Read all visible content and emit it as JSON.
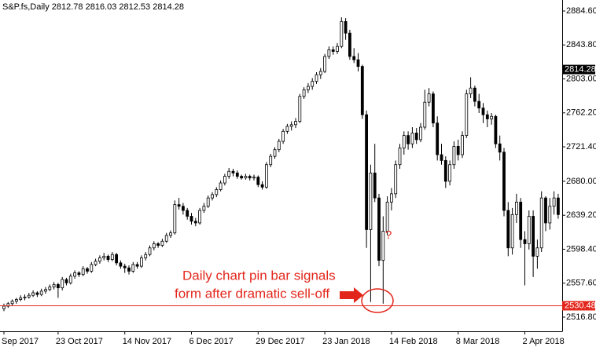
{
  "chart_data": {
    "type": "candlestick",
    "title": "S&P.fs,Daily  2812.78 2816.03 2812.53 2814.28",
    "categories": [
      "Sep 2017",
      null,
      null,
      null,
      null,
      null,
      null,
      null,
      null,
      null,
      null,
      null,
      null,
      "23 Oct 2017",
      null,
      null,
      null,
      null,
      null,
      null,
      null,
      null,
      null,
      null,
      null,
      null,
      null,
      null,
      null,
      "14 Nov 2017",
      null,
      null,
      null,
      null,
      null,
      null,
      null,
      null,
      null,
      null,
      null,
      null,
      null,
      null,
      null,
      "6 Dec 2017",
      null,
      null,
      null,
      null,
      null,
      null,
      null,
      null,
      null,
      null,
      null,
      null,
      null,
      null,
      null,
      "29 Dec 2017",
      null,
      null,
      null,
      null,
      null,
      null,
      null,
      null,
      null,
      null,
      null,
      null,
      null,
      null,
      null,
      "23 Jan 2018",
      null,
      null,
      null,
      null,
      null,
      null,
      null,
      null,
      null,
      null,
      null,
      null,
      null,
      null,
      null,
      "14 Feb 2018",
      null,
      null,
      null,
      null,
      null,
      null,
      null,
      null,
      null,
      null,
      null,
      null,
      null,
      null,
      null,
      "8 Mar 2018",
      null,
      null,
      null,
      null,
      null,
      null,
      null,
      null,
      null,
      null,
      null,
      null,
      null,
      null,
      null,
      "2 Apr 2018",
      null,
      null,
      null,
      null,
      null,
      null,
      null,
      null
    ],
    "open": [
      2527,
      2530,
      2533,
      2536,
      2538,
      2540,
      2541,
      2543,
      2546,
      2544,
      2548,
      2550,
      2553,
      2556,
      2552,
      2562,
      2558,
      2566,
      2570,
      2568,
      2575,
      2572,
      2580,
      2584,
      2588,
      2590,
      2586,
      2592,
      2582,
      2578,
      2576,
      2572,
      2580,
      2578,
      2588,
      2592,
      2600,
      2605,
      2603,
      2608,
      2615,
      2618,
      2652,
      2650,
      2645,
      2638,
      2632,
      2630,
      2645,
      2650,
      2660,
      2664,
      2670,
      2678,
      2686,
      2692,
      2690,
      2686,
      2684,
      2686,
      2684,
      2685,
      2676,
      2673,
      2700,
      2710,
      2718,
      2728,
      2740,
      2746,
      2748,
      2752,
      2782,
      2790,
      2794,
      2800,
      2808,
      2812,
      2830,
      2838,
      2836,
      2842,
      2872,
      2858,
      2830,
      2826,
      2818,
      2760,
      2622,
      2690,
      2660,
      2585,
      2620,
      2655,
      2665,
      2700,
      2720,
      2735,
      2725,
      2738,
      2730,
      2745,
      2775,
      2785,
      2750,
      2712,
      2705,
      2680,
      2700,
      2722,
      2712,
      2735,
      2785,
      2792,
      2776,
      2768,
      2760,
      2755,
      2758,
      2725,
      2715,
      2645,
      2600,
      2640,
      2655,
      2610,
      2605,
      2638,
      2590,
      2600,
      2660,
      2630,
      2650,
      2660
    ],
    "high": [
      2533,
      2535,
      2538,
      2540,
      2543,
      2544,
      2546,
      2549,
      2548,
      2551,
      2553,
      2556,
      2559,
      2558,
      2565,
      2564,
      2569,
      2573,
      2572,
      2578,
      2577,
      2583,
      2587,
      2591,
      2594,
      2592,
      2595,
      2594,
      2585,
      2581,
      2579,
      2583,
      2583,
      2591,
      2595,
      2603,
      2608,
      2607,
      2611,
      2618,
      2621,
      2657,
      2660,
      2654,
      2648,
      2642,
      2636,
      2648,
      2654,
      2663,
      2667,
      2673,
      2681,
      2689,
      2696,
      2695,
      2693,
      2688,
      2689,
      2688,
      2688,
      2687,
      2680,
      2703,
      2713,
      2721,
      2731,
      2743,
      2749,
      2752,
      2756,
      2785,
      2793,
      2798,
      2804,
      2811,
      2816,
      2833,
      2842,
      2842,
      2846,
      2877,
      2876,
      2862,
      2840,
      2834,
      2820,
      2765,
      2700,
      2725,
      2665,
      2638,
      2662,
      2672,
      2705,
      2725,
      2740,
      2740,
      2745,
      2744,
      2750,
      2790,
      2792,
      2788,
      2758,
      2725,
      2710,
      2705,
      2728,
      2730,
      2740,
      2790,
      2805,
      2795,
      2785,
      2774,
      2765,
      2762,
      2760,
      2735,
      2720,
      2655,
      2648,
      2665,
      2660,
      2620,
      2645,
      2645,
      2610,
      2668,
      2662,
      2660,
      2668,
      2665
    ],
    "low": [
      2524,
      2528,
      2531,
      2533,
      2536,
      2537,
      2539,
      2541,
      2541,
      2542,
      2545,
      2548,
      2550,
      2540,
      2549,
      2555,
      2556,
      2563,
      2565,
      2566,
      2569,
      2570,
      2578,
      2581,
      2585,
      2583,
      2584,
      2579,
      2575,
      2570,
      2568,
      2570,
      2575,
      2576,
      2585,
      2590,
      2597,
      2600,
      2601,
      2606,
      2612,
      2616,
      2646,
      2640,
      2634,
      2628,
      2626,
      2628,
      2642,
      2648,
      2657,
      2661,
      2668,
      2675,
      2683,
      2686,
      2683,
      2682,
      2682,
      2681,
      2681,
      2673,
      2670,
      2671,
      2697,
      2707,
      2715,
      2725,
      2737,
      2741,
      2744,
      2750,
      2779,
      2786,
      2790,
      2797,
      2803,
      2810,
      2827,
      2832,
      2833,
      2840,
      2850,
      2826,
      2822,
      2812,
      2755,
      2600,
      2535,
      2655,
      2578,
      2533,
      2615,
      2645,
      2660,
      2695,
      2712,
      2718,
      2720,
      2725,
      2727,
      2742,
      2770,
      2745,
      2705,
      2700,
      2672,
      2675,
      2695,
      2705,
      2708,
      2732,
      2780,
      2770,
      2762,
      2750,
      2745,
      2748,
      2720,
      2705,
      2638,
      2590,
      2592,
      2630,
      2600,
      2555,
      2598,
      2565,
      2575,
      2595,
      2620,
      2622,
      2640,
      2635
    ],
    "close": [
      2530,
      2533,
      2536,
      2538,
      2540,
      2541,
      2543,
      2546,
      2544,
      2548,
      2550,
      2553,
      2556,
      2552,
      2562,
      2558,
      2566,
      2570,
      2568,
      2575,
      2572,
      2580,
      2584,
      2588,
      2590,
      2586,
      2592,
      2582,
      2578,
      2576,
      2572,
      2580,
      2578,
      2588,
      2592,
      2600,
      2605,
      2603,
      2608,
      2615,
      2618,
      2652,
      2650,
      2645,
      2638,
      2632,
      2630,
      2645,
      2650,
      2660,
      2664,
      2670,
      2678,
      2686,
      2692,
      2690,
      2686,
      2684,
      2686,
      2684,
      2685,
      2676,
      2673,
      2700,
      2710,
      2718,
      2728,
      2740,
      2746,
      2748,
      2752,
      2782,
      2790,
      2794,
      2800,
      2808,
      2812,
      2830,
      2838,
      2836,
      2842,
      2872,
      2858,
      2830,
      2826,
      2818,
      2760,
      2622,
      2690,
      2660,
      2585,
      2620,
      2655,
      2665,
      2700,
      2720,
      2735,
      2725,
      2738,
      2730,
      2745,
      2775,
      2785,
      2750,
      2712,
      2705,
      2680,
      2700,
      2722,
      2712,
      2735,
      2785,
      2792,
      2776,
      2768,
      2760,
      2755,
      2758,
      2725,
      2715,
      2645,
      2600,
      2640,
      2655,
      2610,
      2605,
      2638,
      2590,
      2600,
      2660,
      2630,
      2650,
      2660,
      2640
    ],
    "ylim": [
      2499.8,
      2897.8
    ],
    "yticks": [
      {
        "value": 2884.6,
        "label": "2884.60"
      },
      {
        "value": 2843.8,
        "label": "2843.80"
      },
      {
        "value": 2803,
        "label": "2803.00"
      },
      {
        "value": 2762.2,
        "label": "2762.20"
      },
      {
        "value": 2721.4,
        "label": "2721.40"
      },
      {
        "value": 2680,
        "label": "2680.00"
      },
      {
        "value": 2639.2,
        "label": "2639.20"
      },
      {
        "value": 2598.4,
        "label": "2598.40"
      },
      {
        "value": 2557.6,
        "label": "2557.60"
      },
      {
        "value": 2516.8,
        "label": "2516.80"
      }
    ],
    "current_price": 2814.28,
    "hline": {
      "value": 2530.48,
      "color": "#e3261b"
    },
    "annotations": [
      "Daily chart pin bar signals",
      "form after dramatic sell-off",
      "?"
    ]
  }
}
